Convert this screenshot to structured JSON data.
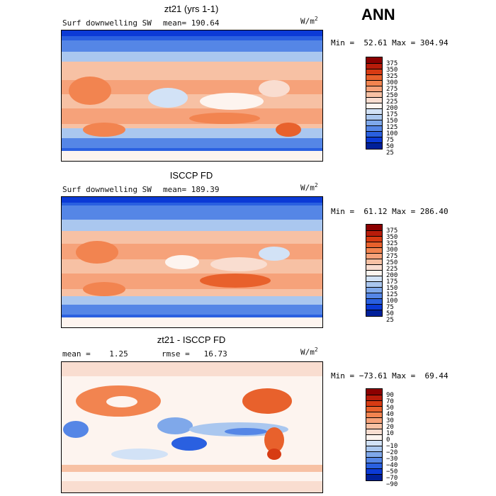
{
  "season": "ANN",
  "panels": [
    {
      "title": "zt21 (yrs 1-1)",
      "left_label": "Surf downwelling SW",
      "center_label": "mean= 190.64",
      "units_base": "W/m",
      "units_exp": "2",
      "min_max": "Min =  52.61 Max = 304.94",
      "colorbar": {
        "ticks": [
          "375",
          "350",
          "325",
          "300",
          "275",
          "250",
          "225",
          "200",
          "175",
          "150",
          "125",
          "100",
          "75",
          "50",
          "25"
        ],
        "colors": [
          "#8b0000",
          "#b81c0a",
          "#d73b13",
          "#e8612c",
          "#f28450",
          "#f6a27a",
          "#f7c1a4",
          "#f9ddd0",
          "#fdf4ef",
          "#d2e2f6",
          "#aac7ef",
          "#7fa8ea",
          "#5586e6",
          "#2a60e0",
          "#0b3ad6",
          "#00209a"
        ]
      }
    },
    {
      "title": "ISCCP FD",
      "left_label": "Surf downwelling SW",
      "center_label": "mean= 189.39",
      "units_base": "W/m",
      "units_exp": "2",
      "min_max": "Min =  61.12 Max = 286.40",
      "colorbar": {
        "ticks": [
          "375",
          "350",
          "325",
          "300",
          "275",
          "250",
          "225",
          "200",
          "175",
          "150",
          "125",
          "100",
          "75",
          "50",
          "25"
        ],
        "colors": [
          "#8b0000",
          "#b81c0a",
          "#d73b13",
          "#e8612c",
          "#f28450",
          "#f6a27a",
          "#f7c1a4",
          "#f9ddd0",
          "#fdf4ef",
          "#d2e2f6",
          "#aac7ef",
          "#7fa8ea",
          "#5586e6",
          "#2a60e0",
          "#0b3ad6",
          "#00209a"
        ]
      }
    },
    {
      "title": "zt21 - ISCCP FD",
      "left_label": "mean =    1.25",
      "center_label": "rmse =   16.73",
      "units_base": "W/m",
      "units_exp": "2",
      "min_max": "Min = −73.61 Max =  69.44",
      "colorbar": {
        "ticks": [
          "90",
          "70",
          "50",
          "40",
          "30",
          "20",
          "10",
          "0",
          "−10",
          "−20",
          "−30",
          "−40",
          "−50",
          "−70",
          "−90"
        ],
        "colors": [
          "#8b0000",
          "#b81c0a",
          "#d73b13",
          "#e8612c",
          "#f28450",
          "#f6a27a",
          "#f7c1a4",
          "#f9ddd0",
          "#fdf4ef",
          "#d2e2f6",
          "#aac7ef",
          "#7fa8ea",
          "#5586e6",
          "#2a60e0",
          "#0b3ad6",
          "#00209a"
        ]
      }
    }
  ]
}
